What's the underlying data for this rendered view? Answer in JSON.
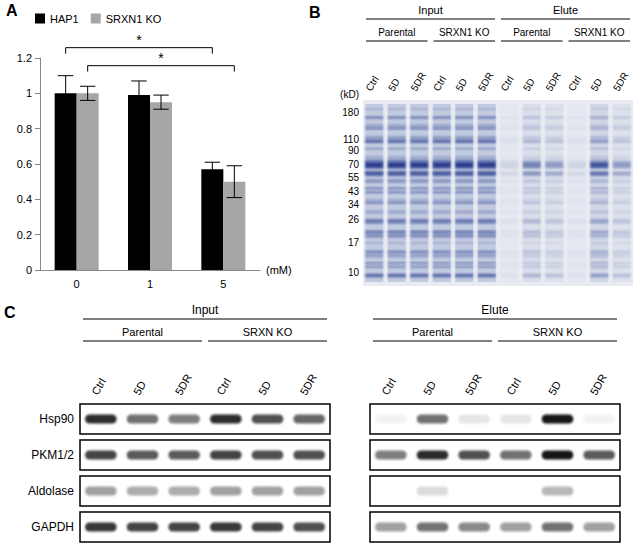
{
  "chart_data": {
    "type": "bar",
    "label": "A",
    "categories": [
      "0",
      "1",
      "5"
    ],
    "xlabel": "(mM)",
    "series": [
      {
        "name": "HAP1",
        "color": "#000000",
        "values": [
          1,
          0.99,
          0.57
        ],
        "errors": [
          0.1,
          0.08,
          0.04
        ]
      },
      {
        "name": "SRXN1 KO",
        "color": "#a6a6a6",
        "values": [
          1,
          0.95,
          0.5
        ],
        "errors": [
          0.04,
          0.04,
          0.09
        ]
      }
    ],
    "ylim": [
      0,
      1.2
    ],
    "yticks": [
      0,
      0.2,
      0.4,
      0.6,
      0.8,
      1,
      1.2
    ],
    "grid": false,
    "legend": "top-left",
    "annotations": [
      {
        "text": "*",
        "series": "HAP1",
        "from": "0",
        "to": "5"
      },
      {
        "text": "*",
        "series": "SRXN1 KO",
        "from": "0",
        "to": "5"
      }
    ]
  },
  "gel": {
    "label": "B",
    "unit": "(kD)",
    "markers": [
      180,
      110,
      90,
      70,
      55,
      43,
      34,
      26,
      17,
      10
    ],
    "groups": [
      {
        "title": "Input",
        "subgroups": [
          {
            "title": "Parental",
            "lanes": [
              "Ctrl",
              "5D",
              "5DR"
            ],
            "loading": [
              1,
              1,
              1
            ]
          },
          {
            "title": "SRXN1 KO",
            "lanes": [
              "Ctrl",
              "5D",
              "5DR"
            ],
            "loading": [
              1,
              1,
              1
            ]
          }
        ]
      },
      {
        "title": "Elute",
        "subgroups": [
          {
            "title": "Parental",
            "lanes": [
              "Ctrl",
              "5D",
              "5DR"
            ],
            "loading": [
              0.08,
              0.4,
              0.3
            ]
          },
          {
            "title": "SRXN1 KO",
            "lanes": [
              "Ctrl",
              "5D",
              "5DR"
            ],
            "loading": [
              0.08,
              0.6,
              0.3
            ]
          }
        ]
      }
    ]
  },
  "blot": {
    "label": "C",
    "groups": [
      {
        "title": "Input",
        "subgroups": [
          {
            "title": "Parental",
            "lanes": [
              "Ctrl",
              "5D",
              "5DR"
            ]
          },
          {
            "title": "SRXN KO",
            "lanes": [
              "Ctrl",
              "5D",
              "5DR"
            ]
          }
        ]
      },
      {
        "title": "Elute",
        "subgroups": [
          {
            "title": "Parental",
            "lanes": [
              "Ctrl",
              "5D",
              "5DR"
            ]
          },
          {
            "title": "SRXN KO",
            "lanes": [
              "Ctrl",
              "5D",
              "5DR"
            ]
          }
        ]
      }
    ],
    "rows": [
      {
        "name": "Hsp90",
        "bands": [
          [
            0.9,
            0.6,
            0.55,
            0.9,
            0.75,
            0.65
          ],
          [
            0.05,
            0.6,
            0.1,
            0.1,
            1.0,
            0.05
          ]
        ]
      },
      {
        "name": "PKM1/2",
        "bands": [
          [
            0.8,
            0.7,
            0.7,
            0.8,
            0.75,
            0.75
          ],
          [
            0.55,
            0.9,
            0.75,
            0.6,
            1.0,
            0.7
          ]
        ]
      },
      {
        "name": "Aldolase",
        "bands": [
          [
            0.4,
            0.35,
            0.35,
            0.4,
            0.4,
            0.4
          ],
          [
            0,
            0.15,
            0,
            0,
            0.3,
            0
          ]
        ]
      },
      {
        "name": "GAPDH",
        "bands": [
          [
            0.85,
            0.8,
            0.8,
            0.85,
            0.8,
            0.75
          ],
          [
            0.4,
            0.6,
            0.5,
            0.4,
            0.6,
            0.4
          ]
        ]
      }
    ]
  }
}
